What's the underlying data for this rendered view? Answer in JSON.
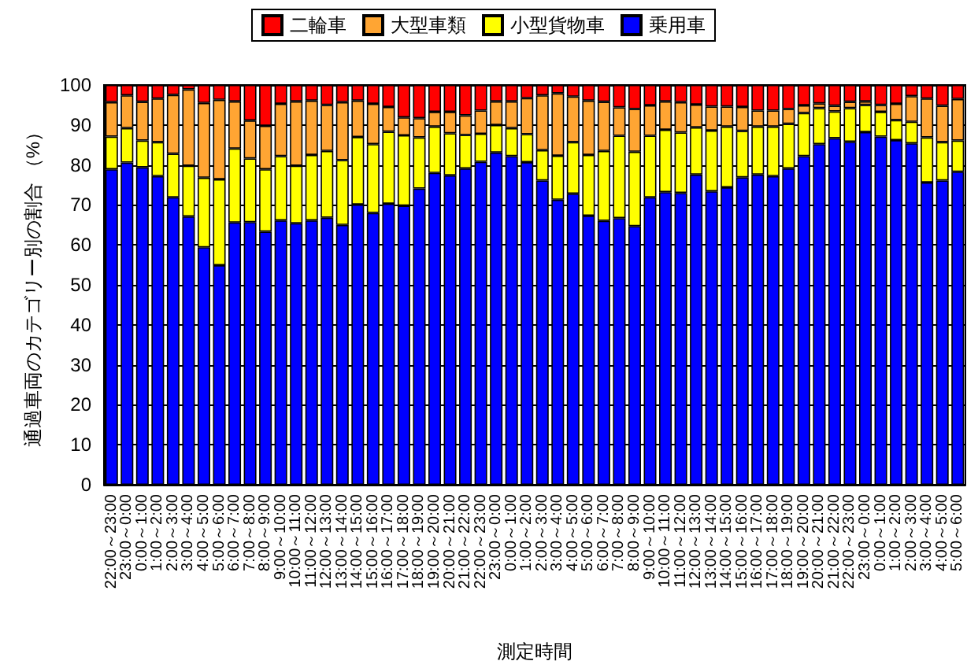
{
  "chart_data": {
    "type": "bar",
    "stacked": true,
    "xlabel": "測定時間",
    "ylabel": "通過車両のカテゴリー別の割合 （%）",
    "categories": [
      "22:00～23:00",
      "23:00～0:00",
      "0:00～1:00",
      "1:00～2:00",
      "2:00～3:00",
      "3:00～4:00",
      "4:00～5:00",
      "5:00～6:00",
      "6:00～7:00",
      "7:00～8:00",
      "8:00～9:00",
      "9:00～10:00",
      "10:00～11:00",
      "11:00～12:00",
      "12:00～13:00",
      "13:00～14:00",
      "14:00～15:00",
      "15:00～16:00",
      "16:00～17:00",
      "17:00～18:00",
      "18:00～19:00",
      "19:00～20:00",
      "20:00～21:00",
      "21:00～22:00",
      "22:00～23:00",
      "23:00～0:00",
      "0:00～1:00",
      "1:00～2:00",
      "2:00～3:00",
      "3:00～4:00",
      "4:00～5:00",
      "5:00～6:00",
      "6:00～7:00",
      "7:00～8:00",
      "8:00～9:00",
      "9:00～10:00",
      "10:00～11:00",
      "11:00～12:00",
      "12:00～13:00",
      "13:00～14:00",
      "14:00～15:00",
      "15:00～16:00",
      "16:00～17:00",
      "17:00～18:00",
      "18:00～19:00",
      "19:00～20:00",
      "20:00～21:00",
      "21:00～22:00",
      "22:00～23:00",
      "23:00～0:00",
      "0:00～1:00",
      "1:00～2:00",
      "2:00～3:00",
      "3:00～4:00",
      "4:00～5:00",
      "5:00～6:00"
    ],
    "series": [
      {
        "name": "乗用車",
        "color": "#0000ff",
        "values": [
          78.9,
          80.6,
          79.4,
          77.2,
          71.9,
          67.1,
          59.4,
          54.9,
          65.6,
          65.7,
          63.3,
          66.1,
          65.4,
          66.1,
          66.8,
          65.0,
          70.1,
          68.0,
          70.3,
          69.8,
          74.1,
          78.0,
          77.4,
          79.1,
          80.8,
          83.1,
          82.2,
          80.7,
          76.1,
          71.3,
          72.8,
          67.3,
          66.0,
          66.7,
          64.7,
          71.9,
          73.2,
          73.0,
          77.6,
          73.4,
          74.4,
          76.9,
          77.6,
          77.2,
          79.1,
          82.2,
          85.2,
          86.7,
          85.8,
          88.2,
          87.1,
          86.2,
          85.4,
          75.6,
          76.1,
          78.3
        ]
      },
      {
        "name": "小型貨物車",
        "color": "#ffff00",
        "values": [
          8.2,
          8.6,
          6.7,
          8.5,
          10.9,
          12.7,
          17.4,
          21.5,
          18.5,
          15.9,
          15.6,
          16.1,
          14.4,
          16.4,
          16.7,
          16.2,
          16.9,
          17.2,
          18.0,
          17.6,
          12.8,
          11.6,
          10.5,
          8.4,
          7.0,
          6.9,
          7.0,
          7.0,
          7.6,
          11.0,
          12.9,
          15.2,
          17.5,
          20.6,
          18.6,
          15.4,
          15.6,
          15.1,
          11.8,
          15.2,
          15.2,
          11.6,
          12.0,
          12.4,
          11.2,
          10.8,
          9.0,
          6.7,
          8.4,
          6.8,
          6.2,
          5.0,
          5.4,
          11.3,
          9.6,
          7.8
        ]
      },
      {
        "name": "大型車類",
        "color": "#ffa533",
        "values": [
          8.6,
          8.2,
          9.7,
          10.9,
          14.7,
          19.1,
          18.7,
          19.9,
          11.8,
          9.5,
          10.9,
          13.1,
          16.1,
          13.6,
          11.5,
          14.5,
          9.1,
          10.1,
          6.2,
          4.5,
          4.8,
          3.7,
          5.4,
          4.9,
          5.8,
          5.9,
          6.7,
          9.0,
          13.7,
          15.6,
          11.4,
          13.6,
          12.3,
          7.1,
          10.7,
          7.6,
          7.1,
          7.6,
          5.7,
          6.0,
          5.0,
          6.0,
          4.0,
          4.0,
          3.7,
          1.9,
          1.2,
          1.4,
          1.6,
          0.9,
          1.7,
          4.1,
          6.4,
          9.7,
          9.1,
          10.4
        ]
      },
      {
        "name": "二輪車",
        "color": "#ff0000",
        "values": [
          4.3,
          2.6,
          4.2,
          3.4,
          2.5,
          1.1,
          4.5,
          3.7,
          4.1,
          8.9,
          10.2,
          4.7,
          4.1,
          3.9,
          5.0,
          4.3,
          3.9,
          4.7,
          5.5,
          8.1,
          8.3,
          6.7,
          6.7,
          7.6,
          6.4,
          4.1,
          4.1,
          3.3,
          2.6,
          2.1,
          2.9,
          3.9,
          4.2,
          5.6,
          6.0,
          5.1,
          4.1,
          4.3,
          4.9,
          5.4,
          5.4,
          5.5,
          6.4,
          6.4,
          6.0,
          5.1,
          4.6,
          5.2,
          4.2,
          4.1,
          5.0,
          4.7,
          2.8,
          3.4,
          5.2,
          3.5
        ]
      }
    ],
    "ylim": [
      0,
      100
    ],
    "yticks": [
      0,
      10,
      20,
      30,
      40,
      50,
      60,
      70,
      80,
      90,
      100
    ],
    "grid": "y",
    "legend": "top"
  }
}
